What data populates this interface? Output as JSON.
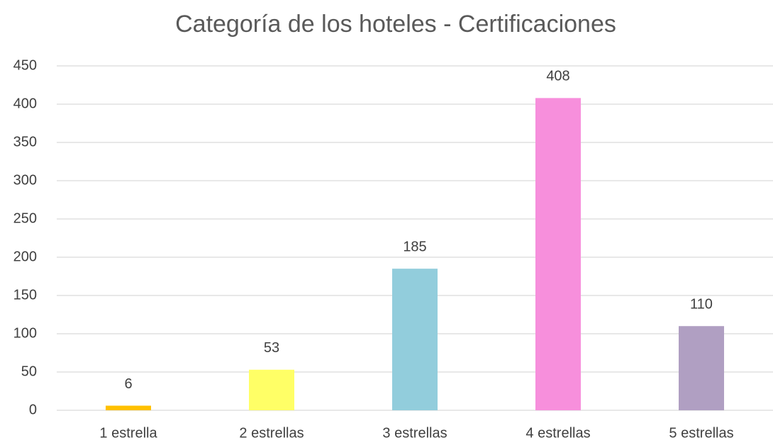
{
  "chart_data": {
    "type": "bar",
    "title": "Categoría de los hoteles - Certificaciones",
    "categories": [
      "1 estrella",
      "2 estrellas",
      "3 estrellas",
      "4 estrellas",
      "5 estrellas"
    ],
    "values": [
      6,
      53,
      185,
      408,
      110
    ],
    "colors": [
      "#ffc000",
      "#ffff66",
      "#92cddc",
      "#f78fdc",
      "#b09fc2"
    ],
    "ylim": [
      0,
      450
    ],
    "yticks": [
      0,
      50,
      100,
      150,
      200,
      250,
      300,
      350,
      400,
      450
    ],
    "grid": true,
    "data_labels": true
  }
}
